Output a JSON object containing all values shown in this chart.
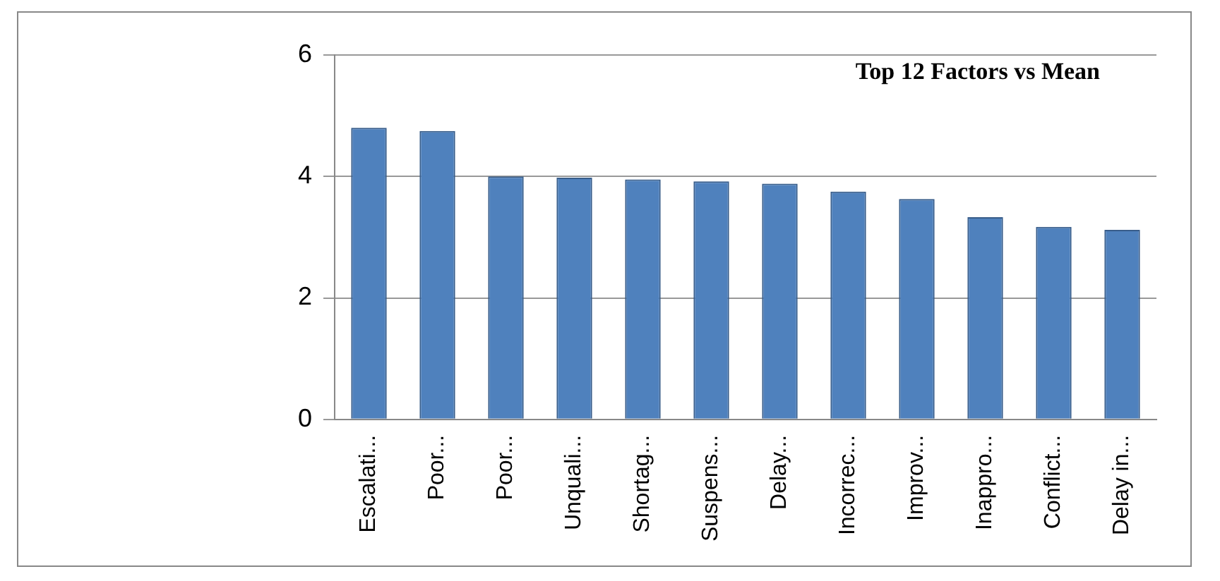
{
  "chart_data": {
    "type": "bar",
    "title": "Top 12 Factors vs Mean",
    "categories": [
      "Escalati...",
      "Poor...",
      "Poor...",
      "Unquali...",
      "Shortag...",
      "Suspens...",
      "Delay...",
      "Incorrec...",
      "Improv...",
      "Inappro...",
      "Conflict...",
      "Delay in..."
    ],
    "values": [
      4.8,
      4.75,
      4.0,
      3.98,
      3.95,
      3.92,
      3.88,
      3.75,
      3.63,
      3.33,
      3.17,
      3.12
    ],
    "color": "#4f81bd",
    "ylim": [
      0,
      6
    ],
    "yticks": [
      0,
      2,
      4,
      6
    ],
    "grid": "y",
    "legend": false
  }
}
